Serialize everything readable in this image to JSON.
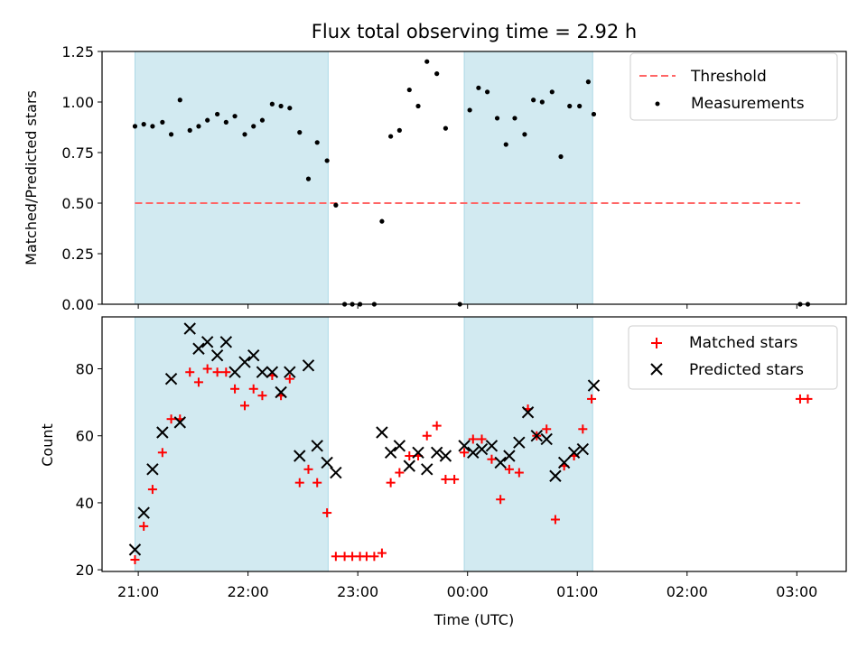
{
  "chart_data": [
    {
      "type": "scatter",
      "panel": "top",
      "title": "Flux total observing time = 2.92 h",
      "xlabel": "",
      "ylabel": "Matched/Predicted stars",
      "ylim": [
        0,
        1.25
      ],
      "yticks": [
        0,
        0.25,
        0.5,
        0.75,
        1.0,
        1.25
      ],
      "ytick_labels": [
        "0.00",
        "0.25",
        "0.50",
        "0.75",
        "1.00",
        "1.25"
      ],
      "x_range_hours": [
        20.67,
        27.45
      ],
      "x_ticks_hours": [
        21,
        22,
        23,
        24,
        25,
        26,
        27
      ],
      "shaded_intervals": [
        [
          20.97,
          22.73
        ],
        [
          23.97,
          25.14
        ]
      ],
      "shade_color": "#add8e6",
      "legend": {
        "position": "top-right",
        "entries": [
          "Threshold",
          "Measurements"
        ]
      },
      "threshold": {
        "name": "Threshold",
        "value": 0.5,
        "x_from": 20.97,
        "x_to": 27.03,
        "color": "#ff6666",
        "style": "dashed"
      },
      "series": [
        {
          "name": "Measurements",
          "marker": "dot",
          "color": "#000000",
          "points": [
            [
              20.97,
              0.88
            ],
            [
              21.05,
              0.89
            ],
            [
              21.13,
              0.88
            ],
            [
              21.22,
              0.9
            ],
            [
              21.3,
              0.84
            ],
            [
              21.38,
              1.01
            ],
            [
              21.47,
              0.86
            ],
            [
              21.55,
              0.88
            ],
            [
              21.63,
              0.91
            ],
            [
              21.72,
              0.94
            ],
            [
              21.8,
              0.9
            ],
            [
              21.88,
              0.93
            ],
            [
              21.97,
              0.84
            ],
            [
              22.05,
              0.88
            ],
            [
              22.13,
              0.91
            ],
            [
              22.22,
              0.99
            ],
            [
              22.3,
              0.98
            ],
            [
              22.38,
              0.97
            ],
            [
              22.47,
              0.85
            ],
            [
              22.55,
              0.62
            ],
            [
              22.63,
              0.8
            ],
            [
              22.72,
              0.71
            ],
            [
              22.8,
              0.49
            ],
            [
              22.88,
              0.0
            ],
            [
              22.95,
              0.0
            ],
            [
              23.02,
              0.0
            ],
            [
              23.15,
              0.0
            ],
            [
              23.22,
              0.41
            ],
            [
              23.3,
              0.83
            ],
            [
              23.38,
              0.86
            ],
            [
              23.47,
              1.06
            ],
            [
              23.55,
              0.98
            ],
            [
              23.63,
              1.2
            ],
            [
              23.72,
              1.14
            ],
            [
              23.8,
              0.87
            ],
            [
              23.93,
              0.0
            ],
            [
              24.02,
              0.96
            ],
            [
              24.1,
              1.07
            ],
            [
              24.18,
              1.05
            ],
            [
              24.27,
              0.92
            ],
            [
              24.35,
              0.79
            ],
            [
              24.43,
              0.92
            ],
            [
              24.52,
              0.84
            ],
            [
              24.6,
              1.01
            ],
            [
              24.68,
              1.0
            ],
            [
              24.77,
              1.05
            ],
            [
              24.85,
              0.73
            ],
            [
              24.93,
              0.98
            ],
            [
              25.02,
              0.98
            ],
            [
              25.1,
              1.1
            ],
            [
              25.15,
              0.94
            ],
            [
              27.03,
              0.0
            ],
            [
              27.1,
              0.0
            ]
          ]
        }
      ]
    },
    {
      "type": "scatter",
      "panel": "bottom",
      "title": "",
      "xlabel": "Time (UTC)",
      "ylabel": "Count",
      "ylim": [
        19.5,
        95.5
      ],
      "yticks": [
        20,
        40,
        60,
        80
      ],
      "ytick_labels": [
        "20",
        "40",
        "60",
        "80"
      ],
      "x_range_hours": [
        20.67,
        27.45
      ],
      "x_ticks_hours": [
        21,
        22,
        23,
        24,
        25,
        26,
        27
      ],
      "xtick_labels": [
        "21:00",
        "22:00",
        "23:00",
        "00:00",
        "01:00",
        "02:00",
        "03:00"
      ],
      "shaded_intervals": [
        [
          20.97,
          22.73
        ],
        [
          23.97,
          25.14
        ]
      ],
      "shade_color": "#add8e6",
      "legend": {
        "position": "top-right",
        "entries": [
          "Matched stars",
          "Predicted stars"
        ]
      },
      "series": [
        {
          "name": "Matched stars",
          "marker": "plus",
          "color": "#ff0000",
          "points": [
            [
              20.97,
              23
            ],
            [
              21.05,
              33
            ],
            [
              21.13,
              44
            ],
            [
              21.22,
              55
            ],
            [
              21.3,
              65
            ],
            [
              21.38,
              65
            ],
            [
              21.47,
              79
            ],
            [
              21.55,
              76
            ],
            [
              21.63,
              80
            ],
            [
              21.72,
              79
            ],
            [
              21.8,
              79
            ],
            [
              21.88,
              74
            ],
            [
              21.97,
              69
            ],
            [
              22.05,
              74
            ],
            [
              22.13,
              72
            ],
            [
              22.22,
              78
            ],
            [
              22.3,
              72
            ],
            [
              22.38,
              77
            ],
            [
              22.47,
              46
            ],
            [
              22.55,
              50
            ],
            [
              22.63,
              46
            ],
            [
              22.72,
              37
            ],
            [
              22.8,
              24
            ],
            [
              22.88,
              24
            ],
            [
              22.95,
              24
            ],
            [
              23.02,
              24
            ],
            [
              23.08,
              24
            ],
            [
              23.15,
              24
            ],
            [
              23.22,
              25
            ],
            [
              23.3,
              46
            ],
            [
              23.38,
              49
            ],
            [
              23.47,
              54
            ],
            [
              23.55,
              54
            ],
            [
              23.63,
              60
            ],
            [
              23.72,
              63
            ],
            [
              23.8,
              47
            ],
            [
              23.88,
              47
            ],
            [
              23.97,
              55
            ],
            [
              24.05,
              59
            ],
            [
              24.13,
              59
            ],
            [
              24.22,
              53
            ],
            [
              24.3,
              41
            ],
            [
              24.38,
              50
            ],
            [
              24.47,
              49
            ],
            [
              24.55,
              68
            ],
            [
              24.63,
              60
            ],
            [
              24.72,
              62
            ],
            [
              24.8,
              35
            ],
            [
              24.88,
              51
            ],
            [
              24.97,
              54
            ],
            [
              25.05,
              62
            ],
            [
              25.13,
              71
            ],
            [
              27.03,
              71
            ],
            [
              27.1,
              71
            ]
          ]
        },
        {
          "name": "Predicted stars",
          "marker": "x",
          "color": "#000000",
          "points": [
            [
              20.97,
              26
            ],
            [
              21.05,
              37
            ],
            [
              21.13,
              50
            ],
            [
              21.22,
              61
            ],
            [
              21.3,
              77
            ],
            [
              21.38,
              64
            ],
            [
              21.47,
              92
            ],
            [
              21.55,
              86
            ],
            [
              21.63,
              88
            ],
            [
              21.72,
              84
            ],
            [
              21.8,
              88
            ],
            [
              21.88,
              79
            ],
            [
              21.97,
              82
            ],
            [
              22.05,
              84
            ],
            [
              22.13,
              79
            ],
            [
              22.22,
              79
            ],
            [
              22.3,
              73
            ],
            [
              22.38,
              79
            ],
            [
              22.47,
              54
            ],
            [
              22.55,
              81
            ],
            [
              22.63,
              57
            ],
            [
              22.72,
              52
            ],
            [
              22.8,
              49
            ],
            [
              23.22,
              61
            ],
            [
              23.3,
              55
            ],
            [
              23.38,
              57
            ],
            [
              23.47,
              51
            ],
            [
              23.55,
              55
            ],
            [
              23.63,
              50
            ],
            [
              23.72,
              55
            ],
            [
              23.8,
              54
            ],
            [
              23.97,
              57
            ],
            [
              24.05,
              55
            ],
            [
              24.13,
              56
            ],
            [
              24.22,
              57
            ],
            [
              24.3,
              52
            ],
            [
              24.38,
              54
            ],
            [
              24.47,
              58
            ],
            [
              24.55,
              67
            ],
            [
              24.63,
              60
            ],
            [
              24.72,
              59
            ],
            [
              24.8,
              48
            ],
            [
              24.88,
              52
            ],
            [
              24.97,
              55
            ],
            [
              25.05,
              56
            ],
            [
              25.15,
              75
            ]
          ]
        }
      ]
    }
  ]
}
